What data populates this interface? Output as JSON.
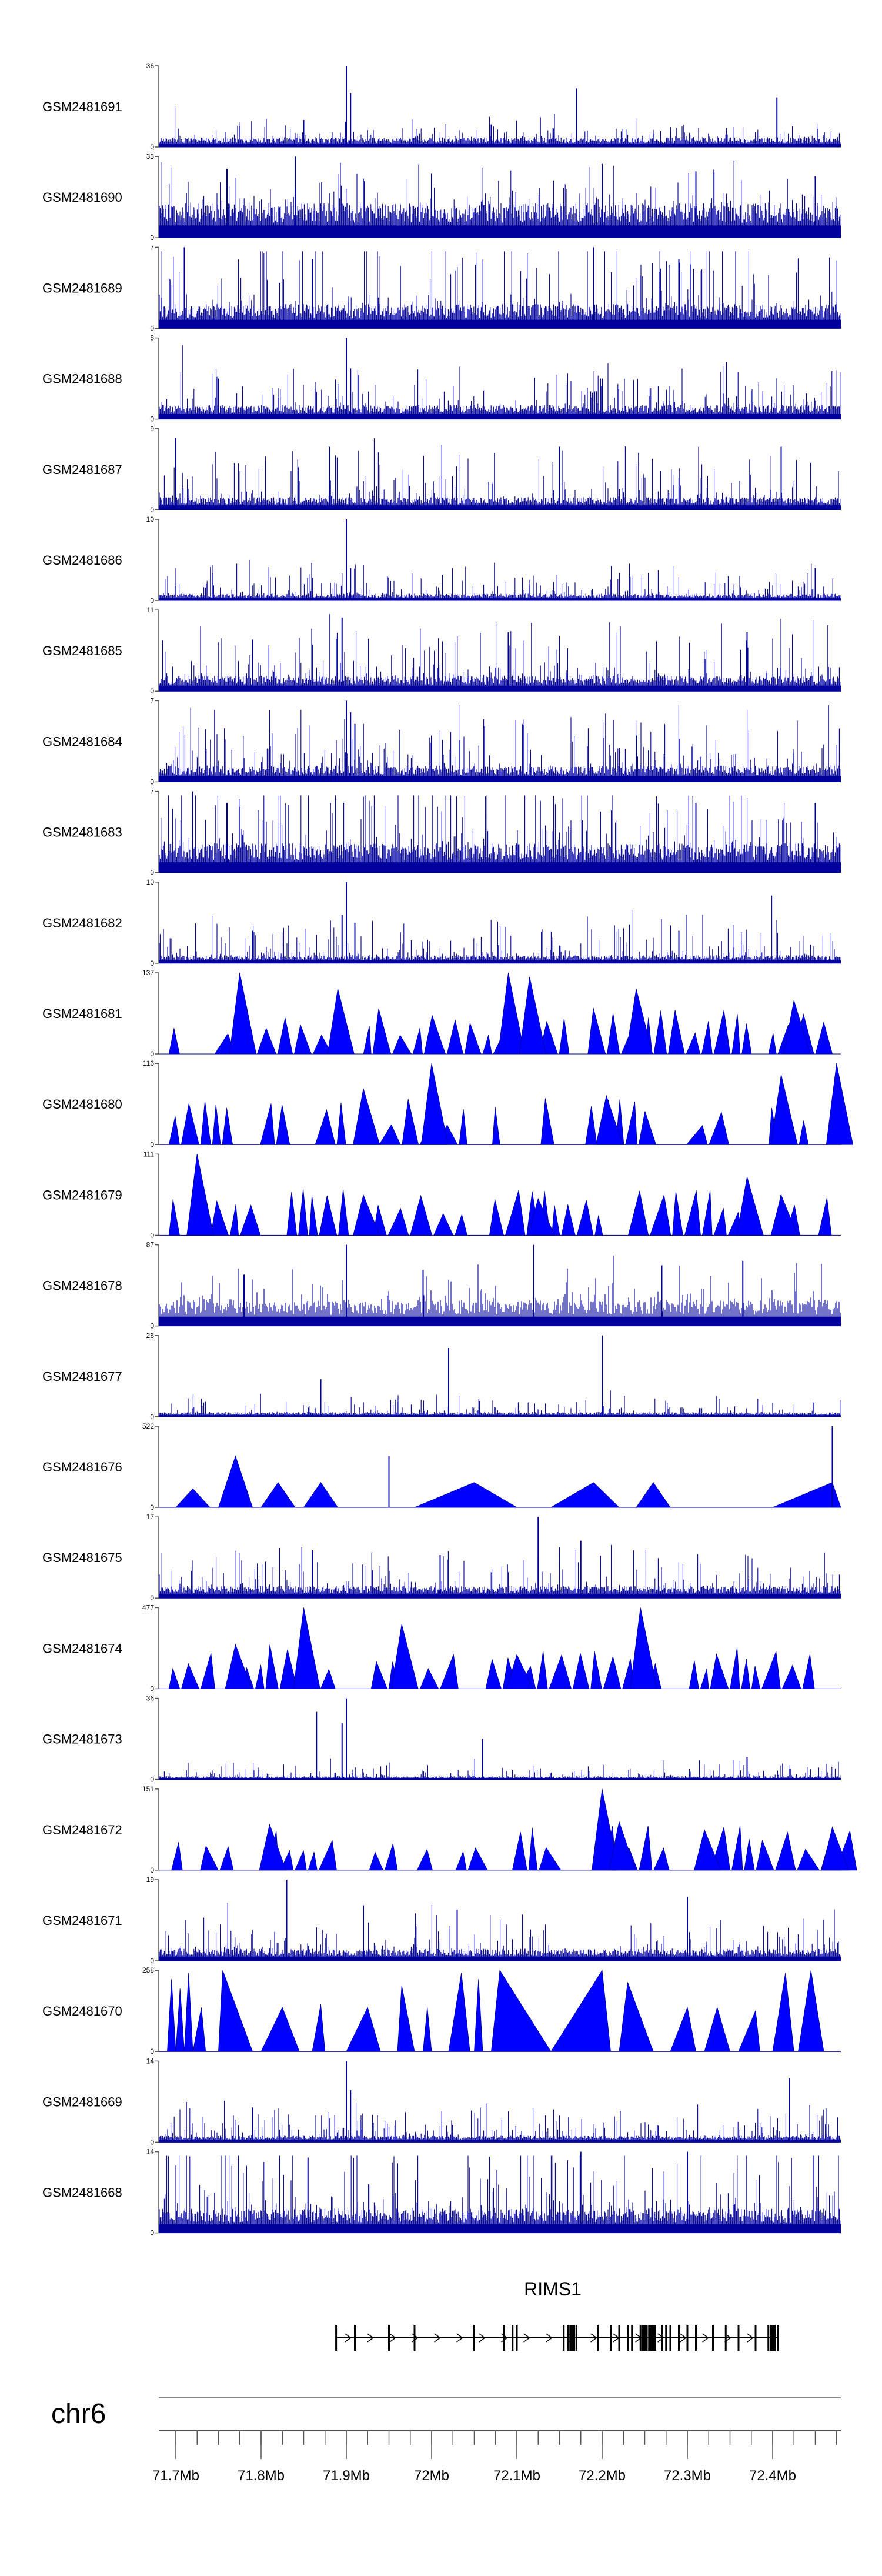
{
  "figure": {
    "chromosome": "chr6",
    "gene": "RIMS1",
    "colors": {
      "signal": "#00009c",
      "signal_light": "#0000ff",
      "axis": "#555555",
      "text": "#000000",
      "gene": "#000000"
    }
  },
  "chart_data": {
    "type": "area",
    "x_unit": "Mb",
    "xlim": [
      71.68,
      72.48
    ],
    "x_ticks": [
      {
        "value": 71.7,
        "label": "71.7Mb"
      },
      {
        "value": 71.8,
        "label": "71.8Mb"
      },
      {
        "value": 71.9,
        "label": "71.9Mb"
      },
      {
        "value": 72.0,
        "label": "72Mb"
      },
      {
        "value": 72.1,
        "label": "72.1Mb"
      },
      {
        "value": 72.2,
        "label": "72.2Mb"
      },
      {
        "value": 72.3,
        "label": "72.3Mb"
      },
      {
        "value": 72.4,
        "label": "72.4Mb"
      }
    ],
    "tracks": [
      {
        "name": "GSM2481691",
        "ylim": [
          0,
          36
        ],
        "ymax_label": "36",
        "ymin_label": "0",
        "style": "dense",
        "baseline": 3,
        "noise": 4,
        "peaks": [
          [
            71.9,
            36
          ],
          [
            71.905,
            24
          ],
          [
            72.17,
            26
          ],
          [
            72.405,
            22
          ],
          [
            71.85,
            12
          ],
          [
            72.07,
            10
          ]
        ]
      },
      {
        "name": "GSM2481690",
        "ylim": [
          0,
          33
        ],
        "ymax_label": "33",
        "ymin_label": "0",
        "style": "dense",
        "baseline": 10,
        "noise": 10,
        "peaks": [
          [
            71.76,
            28
          ],
          [
            71.84,
            33
          ],
          [
            72.0,
            26
          ],
          [
            72.2,
            30
          ],
          [
            72.31,
            27
          ],
          [
            72.45,
            25
          ]
        ]
      },
      {
        "name": "GSM2481689",
        "ylim": [
          0,
          7
        ],
        "ymax_label": "7",
        "ymin_label": "0",
        "style": "dense",
        "baseline": 1.5,
        "noise": 4,
        "peaks": [
          [
            71.71,
            7
          ],
          [
            71.86,
            6
          ],
          [
            72.19,
            7
          ],
          [
            72.29,
            6
          ]
        ]
      },
      {
        "name": "GSM2481688",
        "ylim": [
          0,
          8
        ],
        "ymax_label": "8",
        "ymin_label": "0",
        "style": "dense",
        "baseline": 1,
        "noise": 2.2,
        "peaks": [
          [
            71.9,
            8
          ],
          [
            71.905,
            5
          ],
          [
            71.75,
            4
          ],
          [
            72.2,
            4
          ]
        ]
      },
      {
        "name": "GSM2481687",
        "ylim": [
          0,
          9
        ],
        "ymax_label": "9",
        "ymin_label": "0",
        "style": "dense",
        "baseline": 1,
        "noise": 3.2,
        "peaks": [
          [
            71.7,
            8
          ],
          [
            71.88,
            7
          ],
          [
            72.15,
            7
          ],
          [
            72.41,
            7
          ]
        ]
      },
      {
        "name": "GSM2481686",
        "ylim": [
          0,
          10
        ],
        "ymax_label": "10",
        "ymin_label": "0",
        "style": "dense",
        "baseline": 0.6,
        "noise": 2.2,
        "peaks": [
          [
            71.9,
            10
          ],
          [
            71.905,
            4
          ],
          [
            72.45,
            4
          ]
        ]
      },
      {
        "name": "GSM2481685",
        "ylim": [
          0,
          11
        ],
        "ymax_label": "11",
        "ymin_label": "0",
        "style": "dense",
        "baseline": 1.5,
        "noise": 4,
        "peaks": [
          [
            71.895,
            10
          ],
          [
            72.09,
            8
          ],
          [
            72.37,
            8
          ],
          [
            71.79,
            7
          ]
        ]
      },
      {
        "name": "GSM2481684",
        "ylim": [
          0,
          7
        ],
        "ymax_label": "7",
        "ymin_label": "0",
        "style": "dense",
        "baseline": 1,
        "noise": 3,
        "peaks": [
          [
            71.9,
            7
          ],
          [
            71.905,
            6
          ],
          [
            71.91,
            5
          ],
          [
            72.0,
            4
          ],
          [
            72.24,
            4
          ]
        ]
      },
      {
        "name": "GSM2481683",
        "ylim": [
          0,
          7
        ],
        "ymax_label": "7",
        "ymin_label": "0",
        "style": "dense",
        "baseline": 1.8,
        "noise": 4.2,
        "peaks": [
          [
            71.72,
            7
          ],
          [
            71.76,
            6
          ],
          [
            72.31,
            6
          ],
          [
            72.45,
            6
          ]
        ]
      },
      {
        "name": "GSM2481682",
        "ylim": [
          0,
          10
        ],
        "ymax_label": "10",
        "ymin_label": "0",
        "style": "dense",
        "baseline": 0.7,
        "noise": 2.6,
        "peaks": [
          [
            71.9,
            10
          ],
          [
            71.895,
            6
          ],
          [
            71.91,
            5
          ],
          [
            71.79,
            4
          ],
          [
            72.29,
            4
          ]
        ]
      },
      {
        "name": "GSM2481681",
        "ylim": [
          0,
          137
        ],
        "ymax_label": "137",
        "ymin_label": "0",
        "style": "triangles",
        "seed": 11,
        "peaks": [
          [
            71.775,
            137
          ],
          [
            72.09,
            137
          ],
          [
            72.115,
            130
          ],
          [
            72.24,
            110
          ],
          [
            71.89,
            110
          ],
          [
            72.425,
            90
          ]
        ]
      },
      {
        "name": "GSM2481680",
        "ylim": [
          0,
          116
        ],
        "ymax_label": "116",
        "ymin_label": "0",
        "style": "triangles",
        "seed": 23,
        "peaks": [
          [
            72.0,
            116
          ],
          [
            72.475,
            116
          ],
          [
            72.41,
            100
          ],
          [
            71.92,
            80
          ],
          [
            72.205,
            70
          ]
        ]
      },
      {
        "name": "GSM2481679",
        "ylim": [
          0,
          111
        ],
        "ymax_label": "111",
        "ymin_label": "0",
        "style": "triangles",
        "seed": 37,
        "peaks": [
          [
            71.725,
            111
          ],
          [
            72.37,
            80
          ],
          [
            72.41,
            55
          ],
          [
            71.92,
            55
          ],
          [
            72.125,
            50
          ]
        ]
      },
      {
        "name": "GSM2481678",
        "ylim": [
          0,
          87
        ],
        "ymax_label": "87",
        "ymin_label": "0",
        "style": "spiky",
        "baseline": 20,
        "noise": 25,
        "peaks": [
          [
            71.9,
            87
          ],
          [
            72.12,
            87
          ],
          [
            72.365,
            70
          ],
          [
            71.99,
            60
          ],
          [
            71.78,
            55
          ],
          [
            72.27,
            65
          ]
        ]
      },
      {
        "name": "GSM2481677",
        "ylim": [
          0,
          26
        ],
        "ymax_label": "26",
        "ymin_label": "0",
        "style": "dense",
        "baseline": 1,
        "noise": 3,
        "peaks": [
          [
            72.02,
            22
          ],
          [
            72.2,
            26
          ],
          [
            71.87,
            12
          ]
        ]
      },
      {
        "name": "GSM2481676",
        "ylim": [
          0,
          522
        ],
        "ymax_label": "522",
        "ymin_label": "0",
        "style": "custom",
        "shape": [
          [
            71.68,
            0
          ],
          [
            71.7,
            0
          ],
          [
            71.72,
            120
          ],
          [
            71.74,
            0
          ],
          [
            71.75,
            0
          ],
          [
            71.77,
            330
          ],
          [
            71.79,
            0
          ],
          [
            71.8,
            0
          ],
          [
            71.82,
            160
          ],
          [
            71.84,
            0
          ],
          [
            71.85,
            0
          ],
          [
            71.87,
            160
          ],
          [
            71.89,
            0
          ],
          [
            71.9,
            0
          ],
          [
            71.98,
            0
          ],
          [
            72.05,
            160
          ],
          [
            72.1,
            0
          ],
          [
            72.14,
            0
          ],
          [
            72.19,
            160
          ],
          [
            72.22,
            0
          ],
          [
            72.24,
            0
          ],
          [
            72.26,
            160
          ],
          [
            72.28,
            0
          ],
          [
            72.4,
            0
          ],
          [
            72.47,
            160
          ],
          [
            72.48,
            0
          ]
        ],
        "spikes": [
          [
            72.47,
            522
          ],
          [
            71.95,
            330
          ]
        ]
      },
      {
        "name": "GSM2481675",
        "ylim": [
          0,
          17
        ],
        "ymax_label": "17",
        "ymin_label": "0",
        "style": "dense",
        "baseline": 1.8,
        "noise": 4.5,
        "peaks": [
          [
            72.125,
            17
          ],
          [
            72.175,
            12
          ],
          [
            71.86,
            10
          ],
          [
            72.01,
            9
          ]
        ]
      },
      {
        "name": "GSM2481674",
        "ylim": [
          0,
          477
        ],
        "ymax_label": "477",
        "ymin_label": "0",
        "style": "triangles",
        "seed": 53,
        "end": 72.455,
        "peaks": [
          [
            71.85,
            477
          ],
          [
            71.965,
            380
          ],
          [
            72.245,
            477
          ],
          [
            71.77,
            260
          ],
          [
            72.1,
            200
          ]
        ]
      },
      {
        "name": "GSM2481673",
        "ylim": [
          0,
          36
        ],
        "ymax_label": "36",
        "ymin_label": "0",
        "style": "dense",
        "baseline": 1,
        "noise": 4,
        "peaks": [
          [
            71.9,
            36
          ],
          [
            71.895,
            25
          ],
          [
            71.865,
            30
          ],
          [
            72.06,
            18
          ],
          [
            72.37,
            10
          ]
        ]
      },
      {
        "name": "GSM2481672",
        "ylim": [
          0,
          151
        ],
        "ymax_label": "151",
        "ymin_label": "0",
        "style": "triangles",
        "seed": 67,
        "start": 71.695,
        "peaks": [
          [
            72.2,
            151
          ],
          [
            72.22,
            90
          ],
          [
            71.81,
            85
          ],
          [
            72.47,
            80
          ],
          [
            72.32,
            75
          ]
        ]
      },
      {
        "name": "GSM2481671",
        "ylim": [
          0,
          19
        ],
        "ymax_label": "19",
        "ymin_label": "0",
        "style": "dense",
        "baseline": 2,
        "noise": 5,
        "peaks": [
          [
            71.83,
            19
          ],
          [
            72.3,
            15
          ],
          [
            72.03,
            12
          ],
          [
            71.92,
            13
          ]
        ]
      },
      {
        "name": "GSM2481670",
        "ylim": [
          0,
          258
        ],
        "ymax_label": "258",
        "ymin_label": "0",
        "style": "custom",
        "shape": [
          [
            71.68,
            0
          ],
          [
            71.69,
            0
          ],
          [
            71.695,
            230
          ],
          [
            71.7,
            0
          ],
          [
            71.705,
            200
          ],
          [
            71.71,
            0
          ],
          [
            71.715,
            250
          ],
          [
            71.72,
            0
          ],
          [
            71.73,
            140
          ],
          [
            71.735,
            0
          ],
          [
            71.75,
            0
          ],
          [
            71.755,
            258
          ],
          [
            71.79,
            0
          ],
          [
            71.8,
            0
          ],
          [
            71.825,
            140
          ],
          [
            71.845,
            0
          ],
          [
            71.86,
            0
          ],
          [
            71.87,
            150
          ],
          [
            71.875,
            0
          ],
          [
            71.9,
            0
          ],
          [
            71.925,
            140
          ],
          [
            71.94,
            0
          ],
          [
            71.96,
            0
          ],
          [
            71.965,
            210
          ],
          [
            71.98,
            0
          ],
          [
            71.99,
            0
          ],
          [
            71.995,
            140
          ],
          [
            72.0,
            0
          ],
          [
            72.02,
            0
          ],
          [
            72.035,
            250
          ],
          [
            72.045,
            0
          ],
          [
            72.05,
            0
          ],
          [
            72.055,
            230
          ],
          [
            72.06,
            0
          ],
          [
            72.07,
            0
          ],
          [
            72.08,
            258
          ],
          [
            72.14,
            0
          ],
          [
            72.2,
            258
          ],
          [
            72.21,
            0
          ],
          [
            72.22,
            0
          ],
          [
            72.23,
            220
          ],
          [
            72.26,
            0
          ],
          [
            72.28,
            0
          ],
          [
            72.3,
            140
          ],
          [
            72.31,
            0
          ],
          [
            72.32,
            0
          ],
          [
            72.335,
            140
          ],
          [
            72.35,
            0
          ],
          [
            72.36,
            0
          ],
          [
            72.38,
            130
          ],
          [
            72.385,
            0
          ],
          [
            72.4,
            0
          ],
          [
            72.415,
            250
          ],
          [
            72.425,
            0
          ],
          [
            72.43,
            0
          ],
          [
            72.445,
            258
          ],
          [
            72.46,
            0
          ],
          [
            72.48,
            0
          ]
        ],
        "spikes": []
      },
      {
        "name": "GSM2481669",
        "ylim": [
          0,
          14
        ],
        "ymax_label": "14",
        "ymin_label": "0",
        "style": "dense",
        "baseline": 0.8,
        "noise": 3,
        "peaks": [
          [
            71.9,
            14
          ],
          [
            71.905,
            9
          ],
          [
            72.42,
            11
          ],
          [
            71.79,
            6
          ]
        ]
      },
      {
        "name": "GSM2481668",
        "ylim": [
          0,
          14
        ],
        "ymax_label": "14",
        "ymin_label": "0",
        "style": "dense",
        "baseline": 3,
        "noise": 8,
        "peaks": [
          [
            72.175,
            14
          ],
          [
            72.3,
            14
          ],
          [
            71.855,
            13
          ],
          [
            71.96,
            12
          ]
        ]
      }
    ],
    "gene_model": {
      "name": "RIMS1",
      "start": 71.888,
      "end": 72.406,
      "strand": "+",
      "exons": [
        71.888,
        71.91,
        71.95,
        71.98,
        72.05,
        72.085,
        72.095,
        72.1,
        72.155,
        72.16,
        72.17,
        72.195,
        72.21,
        72.22,
        72.23,
        72.235,
        72.245,
        72.25,
        72.255,
        72.26,
        72.27,
        72.275,
        72.28,
        72.29,
        72.3,
        72.31,
        72.33,
        72.345,
        72.36,
        72.38,
        72.395,
        72.4,
        72.406
      ],
      "thick_exons": [
        72.165,
        72.25,
        72.26,
        72.4
      ]
    }
  }
}
